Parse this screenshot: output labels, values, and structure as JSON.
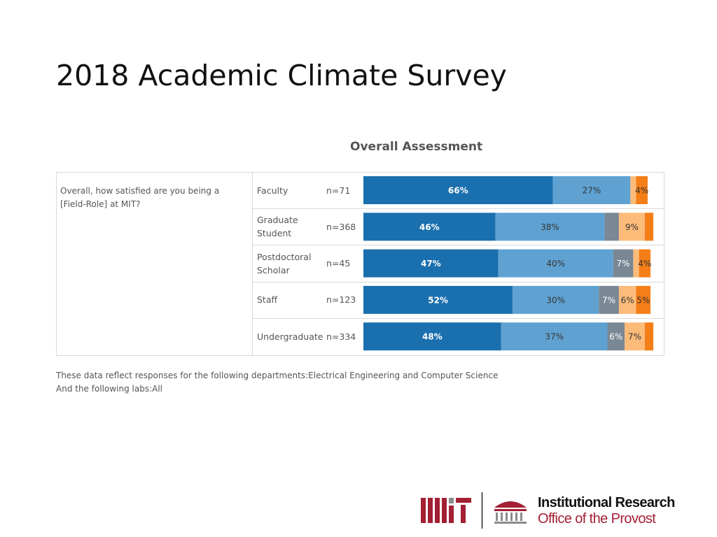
{
  "title": "2018 Academic Climate Survey",
  "chart_data": {
    "type": "stacked-bar",
    "orientation": "horizontal",
    "title": "Overall Assessment",
    "question": "Overall, how satisfied are you being a [Field-Role] at MIT?",
    "categories": [
      "Faculty",
      "Graduate Student",
      "Postdoctoral Scholar",
      "Staff",
      "Undergraduate"
    ],
    "n_labels": [
      "n=71",
      "n=368",
      "n=45",
      "n=123",
      "n=334"
    ],
    "xlim": [
      0,
      100
    ],
    "series": [
      {
        "color": "#1a6fae",
        "label_color": "#ffffff",
        "values": [
          66,
          46,
          47,
          52,
          48
        ],
        "value_labels": [
          "66%",
          "46%",
          "47%",
          "52%",
          "48%"
        ]
      },
      {
        "color": "#5fa2d2",
        "label_color": "#333333",
        "values": [
          27,
          38,
          40,
          30,
          37
        ],
        "value_labels": [
          "27%",
          "38%",
          "40%",
          "30%",
          "37%"
        ]
      },
      {
        "color": "#7a8794",
        "label_color": "#ffffff",
        "values": [
          null,
          5,
          7,
          7,
          6
        ],
        "value_labels": [
          null,
          null,
          "7%",
          "7%",
          "6%"
        ]
      },
      {
        "color": "#fdbb7a",
        "label_color": "#333333",
        "values": [
          2,
          9,
          2,
          6,
          7
        ],
        "value_labels": [
          null,
          "9%",
          null,
          "6%",
          "7%"
        ]
      },
      {
        "color": "#f47e17",
        "label_color": "#333333",
        "values": [
          4,
          3,
          4,
          5,
          3
        ],
        "value_labels": [
          "4%",
          null,
          "4%",
          "5%",
          null
        ]
      }
    ],
    "notes": [
      "These data reflect responses for the following departments:Electrical Engineering and Computer Science",
      "And the following labs:All"
    ]
  },
  "logo": {
    "line1": "Institutional Research",
    "line2": "Office of the Provost"
  }
}
